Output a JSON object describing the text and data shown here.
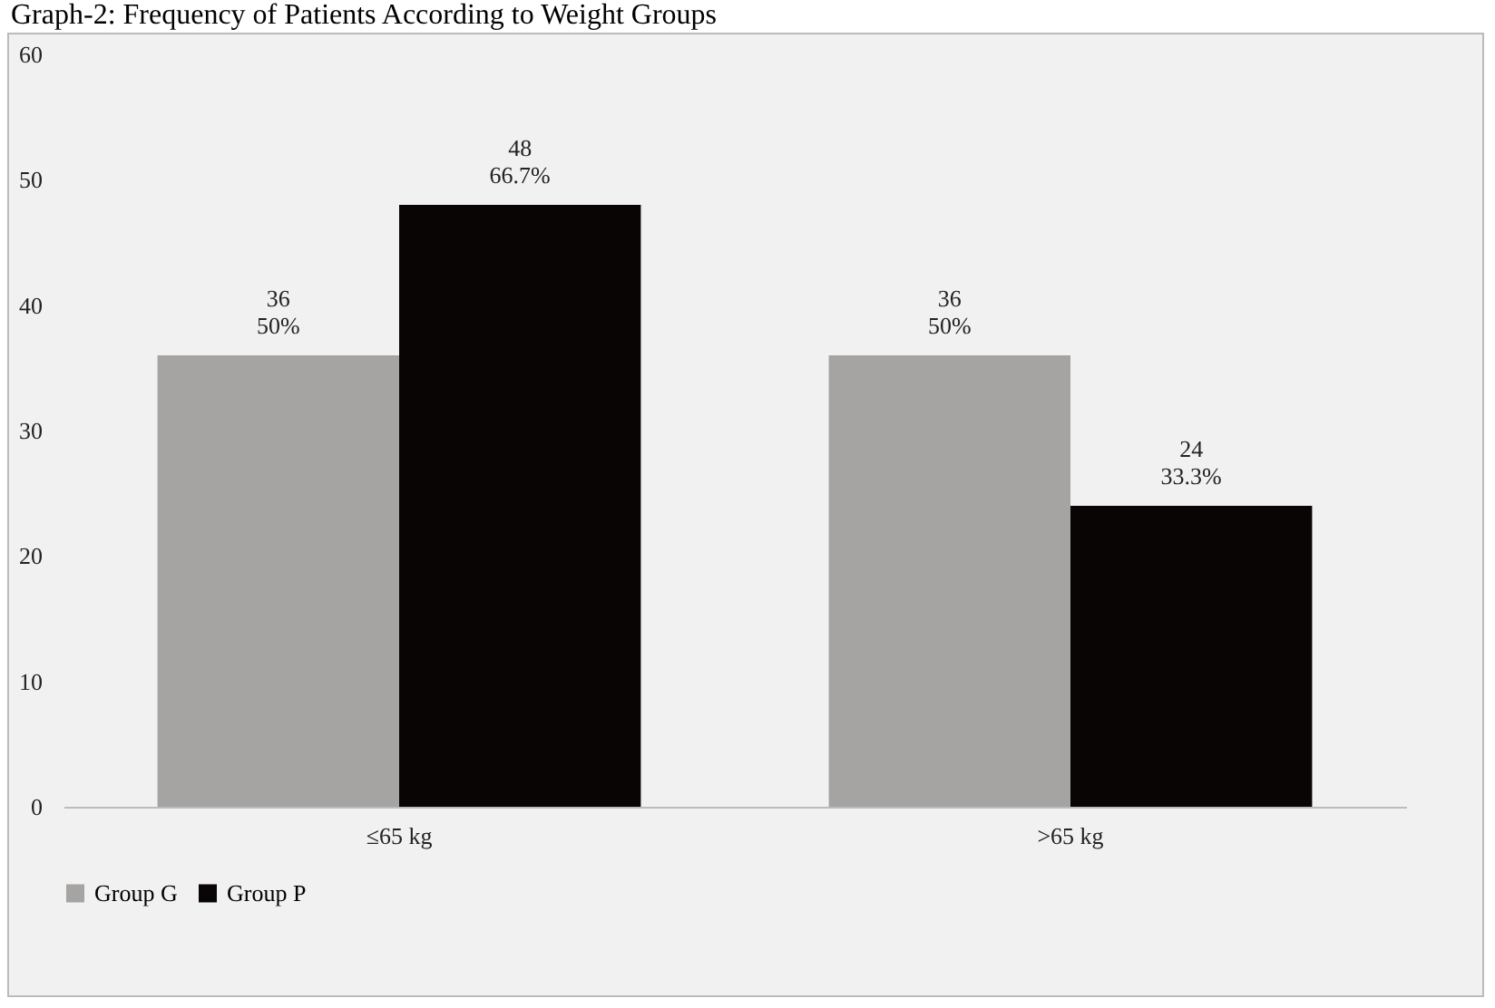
{
  "chart_data": {
    "type": "bar",
    "title": "Graph-2: Frequency of Patients According to Weight Groups",
    "categories": [
      "≤65 kg",
      ">65 kg"
    ],
    "series": [
      {
        "name": "Group G",
        "color": "#a6a3a3",
        "values": [
          36,
          36
        ],
        "value_labels": [
          "36\n50%",
          "36\n50%"
        ]
      },
      {
        "name": "Group P",
        "color": "#0a0505",
        "values": [
          48,
          24
        ],
        "value_labels": [
          "48\n66.7%",
          "24\n33.3%"
        ]
      }
    ],
    "ylim": [
      0,
      60
    ],
    "yticks": [
      0,
      10,
      20,
      30,
      40,
      50,
      60
    ],
    "grid": false,
    "legend": "bottom"
  }
}
